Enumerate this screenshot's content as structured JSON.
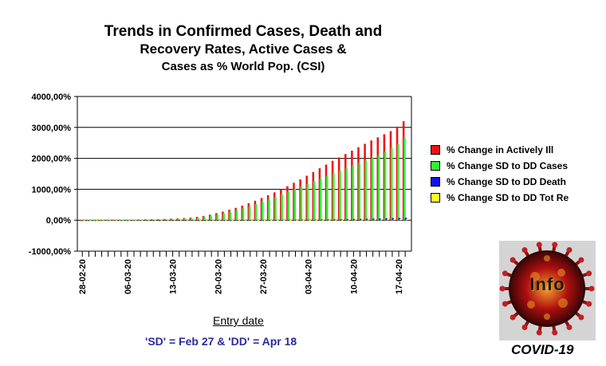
{
  "header": {
    "title_line1": "Trends in Confirmed Cases, Death and",
    "title_line2": "Recovery Rates, Active Cases &",
    "title_line3": "Cases as % World Pop. (CSI)"
  },
  "footnote": "'SD' = Feb 27 & 'DD' = Apr 18",
  "logo": {
    "text": "Info",
    "caption": "COVID-19"
  },
  "chart_data": {
    "type": "bar",
    "title": "Trends in Confirmed Cases, Death and Recovery Rates, Active Cases & Cases as % World Pop. (CSI)",
    "xlabel": "Entry date",
    "ylabel": "",
    "ylim": [
      -1000,
      4000
    ],
    "y_ticks": [
      "4000,00%",
      "3000,00%",
      "2000,00%",
      "1000,00%",
      "0,00%",
      "-1000,00%"
    ],
    "x_tick_labels": [
      "28-02-20",
      "06-03-20",
      "13-03-20",
      "20-03-20",
      "27-03-20",
      "03-04-20",
      "10-04-20",
      "17-04-20"
    ],
    "grid": "horizontal",
    "legend_position": "right",
    "categories": [
      "28-02-20",
      "29-02-20",
      "01-03-20",
      "02-03-20",
      "03-03-20",
      "04-03-20",
      "05-03-20",
      "06-03-20",
      "07-03-20",
      "08-03-20",
      "09-03-20",
      "10-03-20",
      "11-03-20",
      "12-03-20",
      "13-03-20",
      "14-03-20",
      "15-03-20",
      "16-03-20",
      "17-03-20",
      "18-03-20",
      "19-03-20",
      "20-03-20",
      "21-03-20",
      "22-03-20",
      "23-03-20",
      "24-03-20",
      "25-03-20",
      "26-03-20",
      "27-03-20",
      "28-03-20",
      "29-03-20",
      "30-03-20",
      "31-03-20",
      "01-04-20",
      "02-04-20",
      "03-04-20",
      "04-04-20",
      "05-04-20",
      "06-04-20",
      "07-04-20",
      "08-04-20",
      "09-04-20",
      "10-04-20",
      "11-04-20",
      "12-04-20",
      "13-04-20",
      "14-04-20",
      "15-04-20",
      "16-04-20",
      "17-04-20",
      "18-04-20"
    ],
    "series": [
      {
        "name": "% Change in Actively Ill",
        "color": "#ee1111",
        "values": [
          0,
          2,
          4,
          6,
          8,
          10,
          12,
          15,
          18,
          22,
          26,
          30,
          35,
          42,
          50,
          60,
          72,
          88,
          110,
          140,
          180,
          230,
          280,
          340,
          400,
          470,
          550,
          630,
          720,
          810,
          900,
          1000,
          1100,
          1210,
          1320,
          1440,
          1560,
          1680,
          1800,
          1920,
          2030,
          2140,
          2250,
          2360,
          2470,
          2580,
          2680,
          2780,
          2880,
          2980,
          3200
        ]
      },
      {
        "name": "% Change SD to DD Cases",
        "color": "#33ee33",
        "values": [
          0,
          1,
          3,
          4,
          6,
          8,
          10,
          12,
          15,
          18,
          21,
          25,
          30,
          35,
          42,
          50,
          60,
          73,
          90,
          115,
          145,
          185,
          225,
          275,
          330,
          390,
          455,
          525,
          600,
          680,
          760,
          840,
          925,
          1010,
          1095,
          1180,
          1265,
          1350,
          1435,
          1520,
          1605,
          1690,
          1770,
          1850,
          1930,
          2010,
          2110,
          2220,
          2340,
          2460,
          2680
        ]
      },
      {
        "name": "% Change SD to DD Death",
        "color": "#1111ee",
        "values": [
          0,
          0,
          0,
          0,
          0,
          0,
          0,
          0,
          0,
          0,
          0,
          0,
          0,
          0,
          0,
          0,
          0,
          0,
          1,
          1,
          1,
          2,
          2,
          3,
          3,
          4,
          5,
          6,
          7,
          8,
          9,
          11,
          13,
          15,
          17,
          19,
          21,
          24,
          27,
          30,
          33,
          37,
          41,
          45,
          49,
          54,
          59,
          64,
          70,
          76,
          82
        ]
      },
      {
        "name": "% Change SD to DD Tot Re",
        "color": "#ffff22",
        "values": [
          0,
          0,
          0,
          0,
          0,
          0,
          0,
          0,
          0,
          0,
          0,
          0,
          0,
          0,
          0,
          0,
          0,
          0,
          0,
          0,
          1,
          1,
          1,
          1,
          2,
          2,
          2,
          3,
          3,
          4,
          4,
          5,
          5,
          6,
          7,
          8,
          9,
          10,
          11,
          12,
          13,
          14,
          16,
          18,
          20,
          22,
          24,
          26,
          28,
          31,
          34
        ]
      }
    ]
  }
}
